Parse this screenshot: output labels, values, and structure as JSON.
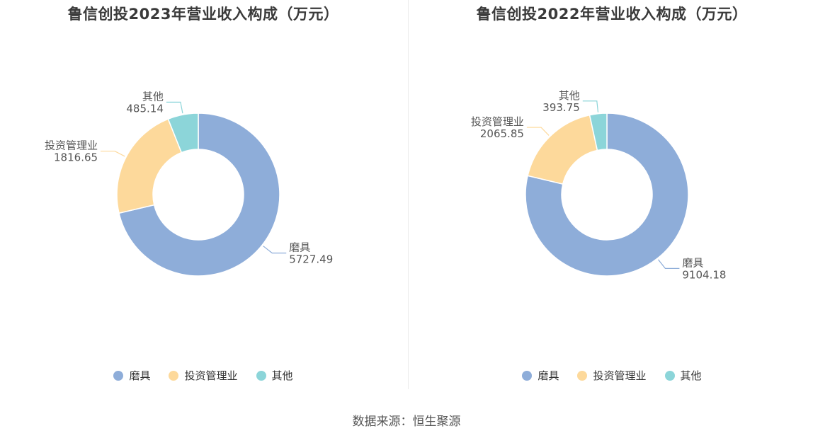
{
  "source_text": "数据来源：恒生聚源",
  "colors": [
    "#8eadd9",
    "#fdd99b",
    "#8cd5d9"
  ],
  "chart_data": [
    {
      "type": "pie",
      "subtype": "donut",
      "title": "鲁信创投2023年营业收入构成（万元）",
      "legend_position": "bottom",
      "slices": [
        {
          "label": "磨具",
          "value": 5727.49,
          "value_text": "5727.49"
        },
        {
          "label": "投资管理业",
          "value": 1816.65,
          "value_text": "1816.65"
        },
        {
          "label": "其他",
          "value": 485.14,
          "value_text": "485.14"
        }
      ]
    },
    {
      "type": "pie",
      "subtype": "donut",
      "title": "鲁信创投2022年营业收入构成（万元）",
      "legend_position": "bottom",
      "slices": [
        {
          "label": "磨具",
          "value": 9104.18,
          "value_text": "9104.18"
        },
        {
          "label": "投资管理业",
          "value": 2065.85,
          "value_text": "2065.85"
        },
        {
          "label": "其他",
          "value": 393.75,
          "value_text": "393.75"
        }
      ]
    }
  ]
}
